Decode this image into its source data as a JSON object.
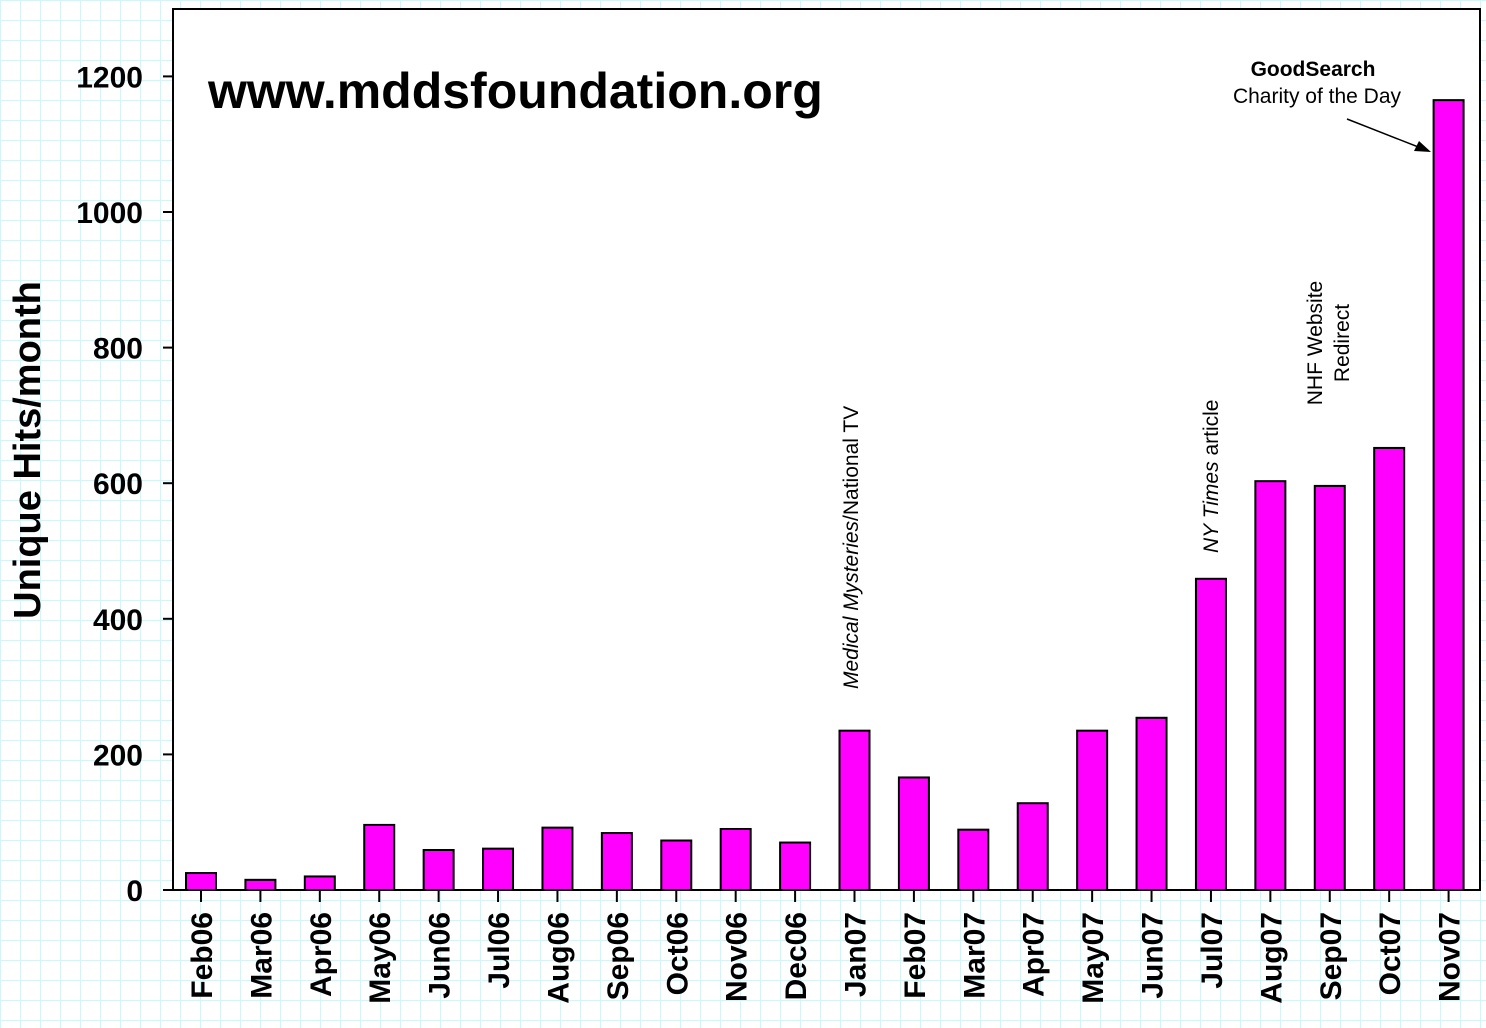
{
  "chart_data": {
    "type": "bar",
    "title": "www.mddsfoundation.org",
    "xlabel": "",
    "ylabel": "Unique Hits/month",
    "ylim": [
      0,
      1200
    ],
    "yticks": [
      "0",
      "200",
      "400",
      "600",
      "800",
      "1000",
      "1200"
    ],
    "grid": false,
    "bar_color": "#ff00ff",
    "categories": [
      "Feb06",
      "Mar06",
      "Apr06",
      "May06",
      "Jun06",
      "Jul06",
      "Aug06",
      "Sep06",
      "Oct06",
      "Nov06",
      "Dec06",
      "Jan07",
      "Feb07",
      "Mar07",
      "Apr07",
      "May07",
      "Jun07",
      "Jul07",
      "Aug07",
      "Sep07",
      "Oct07",
      "Nov07"
    ],
    "values": [
      25,
      15,
      20,
      96,
      59,
      61,
      92,
      84,
      73,
      90,
      70,
      235,
      166,
      89,
      128,
      235,
      254,
      459,
      603,
      596,
      652,
      1165
    ],
    "annotations": [
      {
        "category": "Jan07",
        "italic_text": "Medical Mysteries",
        "text": "/National TV"
      },
      {
        "category": "Jul07",
        "italic_text": "NY Times",
        "text": " article"
      },
      {
        "category": "Sep07",
        "line1": "NHF Website",
        "line2": "Redirect"
      },
      {
        "category": "Nov07",
        "line1": "GoodSearch",
        "line2": "Charity of the Day"
      }
    ]
  }
}
